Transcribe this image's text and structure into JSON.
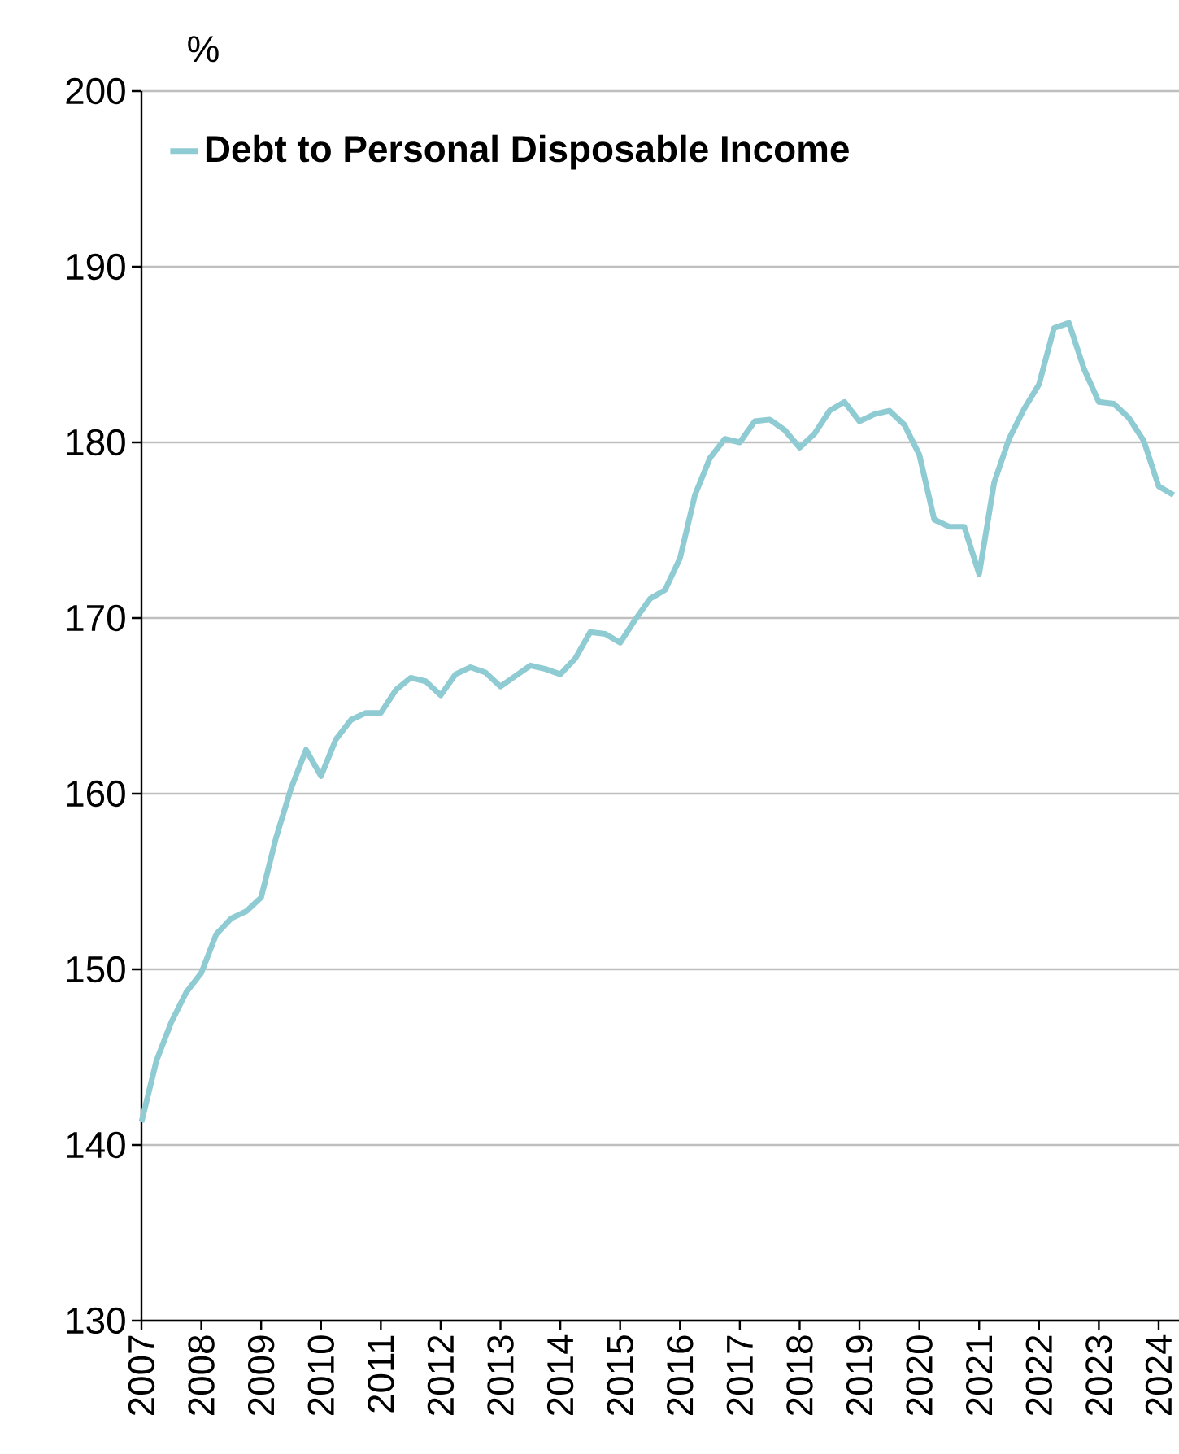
{
  "chart_data": {
    "type": "line",
    "ylabel": "%",
    "x": [
      2007.0,
      2007.25,
      2007.5,
      2007.75,
      2008.0,
      2008.25,
      2008.5,
      2008.75,
      2009.0,
      2009.25,
      2009.5,
      2009.75,
      2010.0,
      2010.25,
      2010.5,
      2010.75,
      2011.0,
      2011.25,
      2011.5,
      2011.75,
      2012.0,
      2012.25,
      2012.5,
      2012.75,
      2013.0,
      2013.25,
      2013.5,
      2013.75,
      2014.0,
      2014.25,
      2014.5,
      2014.75,
      2015.0,
      2015.25,
      2015.5,
      2015.75,
      2016.0,
      2016.25,
      2016.5,
      2016.75,
      2017.0,
      2017.25,
      2017.5,
      2017.75,
      2018.0,
      2018.25,
      2018.5,
      2018.75,
      2019.0,
      2019.25,
      2019.5,
      2019.75,
      2020.0,
      2020.25,
      2020.5,
      2020.75,
      2021.0,
      2021.25,
      2021.5,
      2021.75,
      2022.0,
      2022.25,
      2022.5,
      2022.75,
      2023.0,
      2023.25,
      2023.5,
      2023.75,
      2024.0,
      2024.25
    ],
    "series": [
      {
        "name": "Debt to Personal Disposable Income",
        "color": "#8fcbd3",
        "values": [
          141.3,
          144.8,
          147,
          148.7,
          149.8,
          152,
          152.9,
          153.3,
          154.1,
          157.5,
          160.3,
          162.5,
          161,
          163.1,
          164.2,
          164.6,
          164.6,
          165.9,
          166.6,
          166.4,
          165.6,
          166.8,
          167.2,
          166.9,
          166.1,
          166.7,
          167.3,
          167.1,
          166.8,
          167.7,
          169.2,
          169.1,
          168.6,
          169.9,
          171.1,
          171.6,
          173.4,
          177,
          179.1,
          180.2,
          180,
          181.2,
          181.3,
          180.7,
          179.7,
          180.5,
          181.8,
          182.3,
          181.2,
          181.6,
          181.8,
          181,
          179.3,
          175.6,
          175.2,
          175.2,
          172.5,
          177.7,
          180.2,
          181.9,
          183.3,
          186.5,
          186.8,
          184.2,
          182.3,
          182.2,
          181.4,
          180.1,
          177.5,
          177
        ]
      }
    ],
    "xlim": [
      2007,
      2024.34
    ],
    "ylim": [
      130,
      200
    ],
    "xticks": [
      2007,
      2008,
      2009,
      2010,
      2011,
      2012,
      2013,
      2014,
      2015,
      2016,
      2017,
      2018,
      2019,
      2020,
      2021,
      2022,
      2023,
      2024
    ],
    "yticks": [
      130,
      140,
      150,
      160,
      170,
      180,
      190,
      200
    ],
    "grid": "y",
    "legend": "top left",
    "marker": "none",
    "line_style": "solid"
  }
}
